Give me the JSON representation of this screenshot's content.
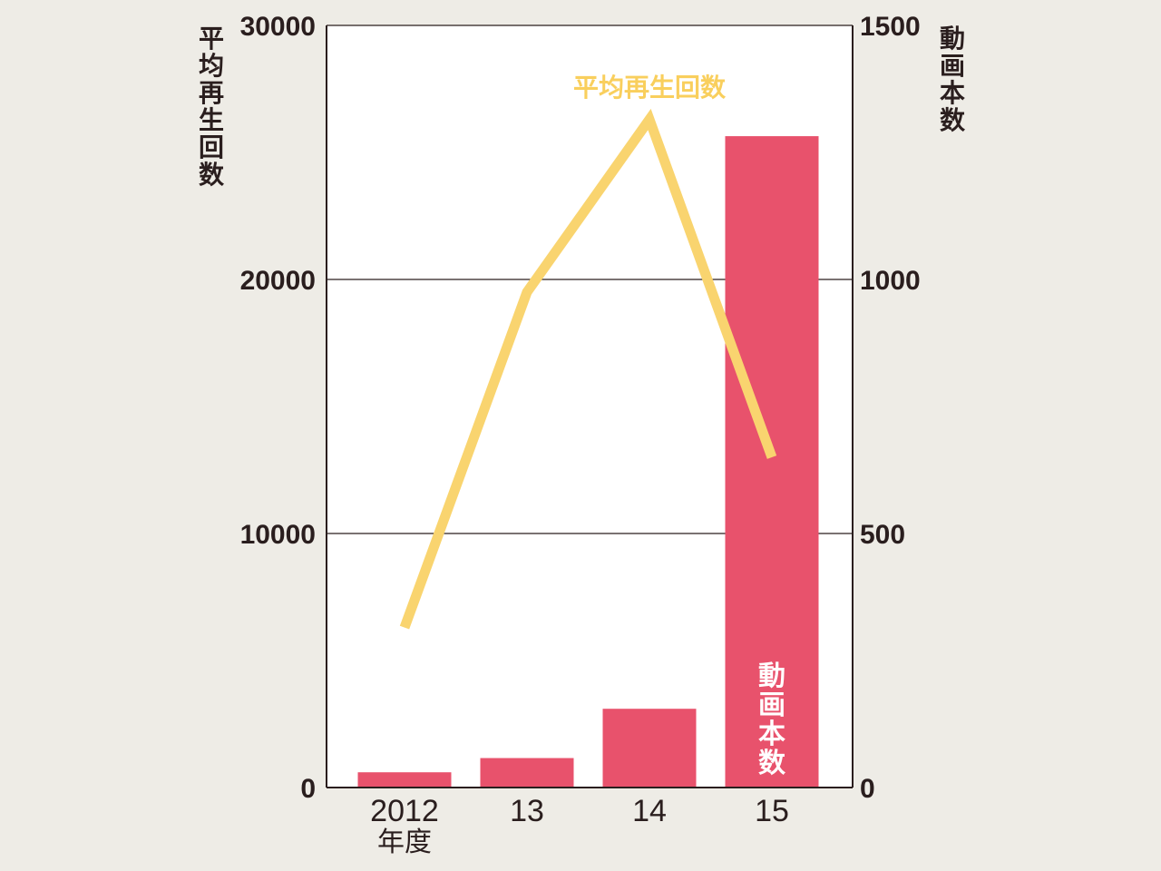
{
  "chart_data": {
    "type": "bar+line",
    "categories": [
      "2012",
      "13",
      "14",
      "15"
    ],
    "x_unit": "年度",
    "series": [
      {
        "name": "動画本数",
        "type": "bar",
        "axis": "right",
        "values": [
          30,
          58,
          155,
          1282
        ],
        "color": "#e8526c"
      },
      {
        "name": "平均再生回数",
        "type": "line",
        "axis": "left",
        "values": [
          6300,
          19500,
          26300,
          13000
        ],
        "color": "#f9d46f"
      }
    ],
    "y_left": {
      "label": "平均再生回数",
      "range": [
        0,
        30000
      ],
      "ticks": [
        "0",
        "10000",
        "20000",
        "30000"
      ]
    },
    "y_right": {
      "label": "動画本数",
      "range": [
        0,
        1500
      ],
      "ticks": [
        "0",
        "500",
        "1000",
        "1500"
      ]
    },
    "grid": true
  }
}
